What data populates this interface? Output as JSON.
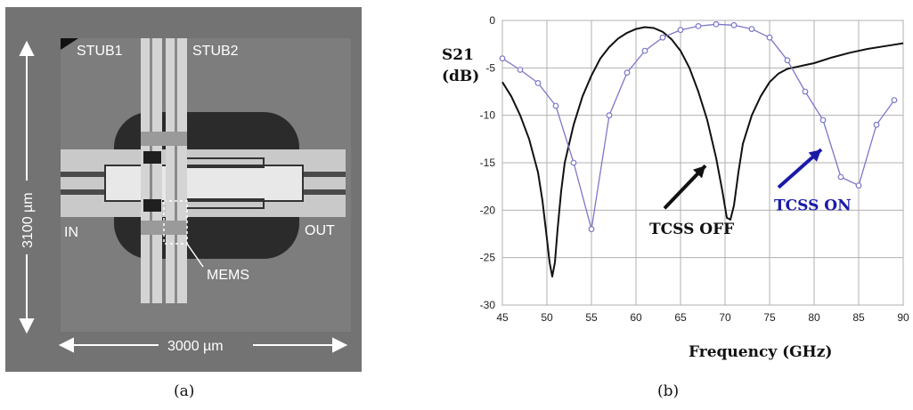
{
  "panel_a": {
    "labels": {
      "stub1": "STUB1",
      "stub2": "STUB2",
      "in": "IN",
      "out": "OUT",
      "mems": "MEMS",
      "height": "3100 µm",
      "width": "3000 µm"
    },
    "caption": "(a)"
  },
  "panel_b": {
    "caption": "(b)"
  },
  "chart_data": {
    "type": "line",
    "title": "",
    "ylabel": "S21\n(dB)",
    "ylabel_line1": "S21",
    "ylabel_line2": "(dB)",
    "xlabel": "Frequency (GHz)",
    "xlim": [
      45,
      90
    ],
    "ylim": [
      -30,
      0
    ],
    "x_ticks": [
      45,
      50,
      55,
      60,
      65,
      70,
      75,
      80,
      85,
      90
    ],
    "y_ticks": [
      0,
      -5,
      -10,
      -15,
      -20,
      -25,
      -30
    ],
    "grid": true,
    "series": [
      {
        "name": "TCSS OFF",
        "color": "#111111",
        "marker": "none",
        "x": [
          45,
          46,
          47,
          48,
          49,
          49.5,
          50,
          50.3,
          50.6,
          50.9,
          51.2,
          51.6,
          52,
          53,
          54,
          55,
          56,
          57,
          58,
          59,
          60,
          61,
          62,
          63,
          64,
          65,
          66,
          67,
          68,
          69,
          69.7,
          70.2,
          70.6,
          71,
          71.5,
          72,
          73,
          74,
          75,
          76,
          77,
          78,
          79,
          80,
          82,
          84,
          86,
          88,
          90
        ],
        "y": [
          -6.5,
          -8,
          -10,
          -12.5,
          -16,
          -19,
          -23,
          -25.5,
          -27,
          -25.5,
          -22,
          -18,
          -15,
          -11,
          -8,
          -5.8,
          -4,
          -2.8,
          -1.9,
          -1.3,
          -0.9,
          -0.7,
          -0.8,
          -1.2,
          -2,
          -3.2,
          -5,
          -7.5,
          -10.5,
          -14.5,
          -18,
          -20.8,
          -21,
          -19.5,
          -16,
          -13,
          -10,
          -8,
          -6.5,
          -5.6,
          -5.1,
          -4.9,
          -4.7,
          -4.5,
          -3.9,
          -3.4,
          -3,
          -2.7,
          -2.4
        ]
      },
      {
        "name": "TCSS ON",
        "color": "#7b78c8",
        "marker": "circle",
        "x": [
          45,
          47,
          49,
          51,
          53,
          55,
          57,
          59,
          61,
          63,
          65,
          67,
          69,
          71,
          73,
          75,
          77,
          79,
          81,
          83,
          85,
          87,
          89
        ],
        "y": [
          -4,
          -5.2,
          -6.6,
          -9,
          -15,
          -22,
          -10,
          -5.5,
          -3.2,
          -1.8,
          -1,
          -0.6,
          -0.4,
          -0.5,
          -0.9,
          -1.8,
          -4.2,
          -7.5,
          -10.5,
          -16.5,
          -17.4,
          -11,
          -8.4
        ]
      }
    ],
    "annotations": [
      {
        "text": "TCSS OFF",
        "color": "#111111",
        "x": 61.5,
        "y": -22.5
      },
      {
        "text": "TCSS ON",
        "color": "#1a1aa8",
        "x": 75.5,
        "y": -20
      }
    ]
  }
}
